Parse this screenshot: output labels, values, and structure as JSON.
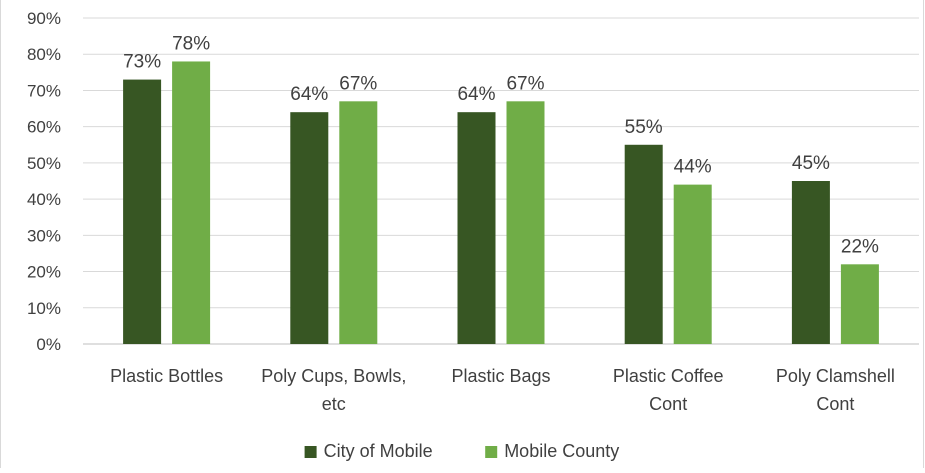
{
  "chart_data": {
    "type": "bar",
    "title": "",
    "xlabel": "",
    "ylabel": "",
    "ylim": [
      0,
      90
    ],
    "yticks": [
      "0%",
      "10%",
      "20%",
      "30%",
      "40%",
      "50%",
      "60%",
      "70%",
      "80%",
      "90%"
    ],
    "grid": true,
    "legend_position": "bottom",
    "categories": [
      [
        "Plastic Bottles"
      ],
      [
        "Poly Cups, Bowls,",
        "etc"
      ],
      [
        "Plastic Bags"
      ],
      [
        "Plastic Coffee",
        "Cont"
      ],
      [
        "Poly Clamshell",
        "Cont"
      ]
    ],
    "series": [
      {
        "name": "City of Mobile",
        "color": "#375623",
        "values": [
          73,
          64,
          64,
          55,
          45
        ],
        "labels": [
          "73%",
          "64%",
          "64%",
          "55%",
          "45%"
        ]
      },
      {
        "name": "Mobile County",
        "color": "#70ad47",
        "values": [
          78,
          67,
          67,
          44,
          22
        ],
        "labels": [
          "78%",
          "67%",
          "67%",
          "44%",
          "22%"
        ]
      }
    ]
  }
}
